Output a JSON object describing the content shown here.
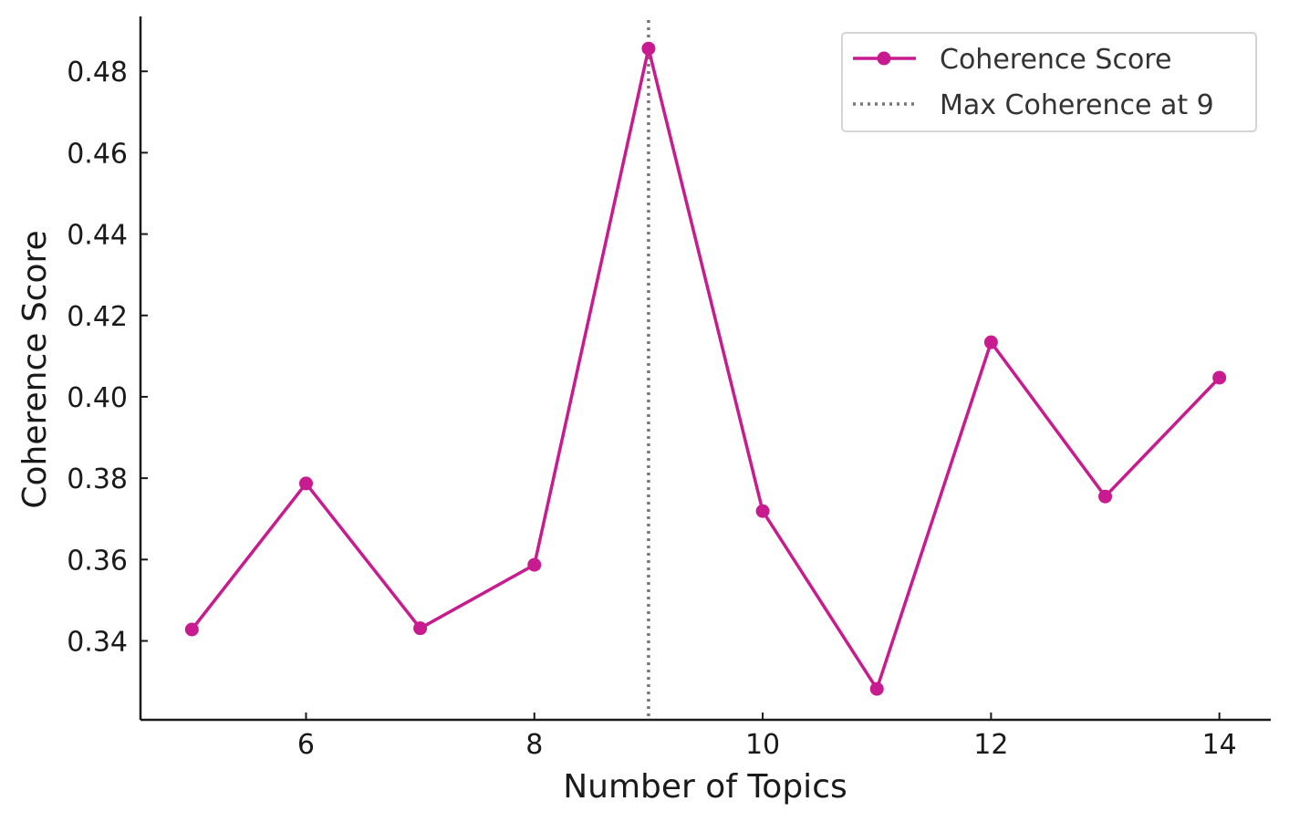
{
  "chart_data": {
    "type": "line",
    "title": "",
    "xlabel": "Number of Topics",
    "ylabel": "Coherence Score",
    "xlim": [
      4.55,
      14.45
    ],
    "ylim": [
      0.3206,
      0.4935
    ],
    "xticks": [
      6,
      8,
      10,
      12,
      14
    ],
    "xtick_labels": [
      "6",
      "8",
      "10",
      "12",
      "14"
    ],
    "yticks": [
      0.34,
      0.36,
      0.38,
      0.4,
      0.42,
      0.44,
      0.46,
      0.48
    ],
    "ytick_labels": [
      "0.34",
      "0.36",
      "0.38",
      "0.40",
      "0.42",
      "0.44",
      "0.46",
      "0.48"
    ],
    "grid": false,
    "legend_position": "top-right",
    "series": [
      {
        "name": "Coherence Score",
        "color": "#c71b8f",
        "marker": "circle",
        "x": [
          5,
          6,
          7,
          8,
          9,
          10,
          11,
          12,
          13,
          14
        ],
        "y": [
          0.3428,
          0.3787,
          0.3431,
          0.3587,
          0.4856,
          0.3719,
          0.3282,
          0.4134,
          0.3755,
          0.4047
        ]
      }
    ],
    "reference_lines": [
      {
        "name": "Max Coherence at 9",
        "orientation": "vertical",
        "x": 9,
        "style": "dotted",
        "color": "#777777"
      }
    ]
  }
}
